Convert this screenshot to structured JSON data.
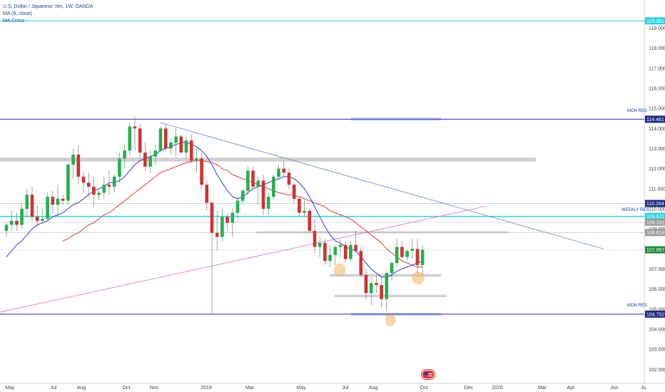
{
  "legend": {
    "title": "U.S. Dollar / Japanese Yen, 1W, OANDA",
    "ma_label": "MA (9, close)",
    "ma_cross_label": "MA Cross"
  },
  "colors": {
    "up": "#26a69a",
    "up_fill": "#22b14c",
    "down": "#d32f2f",
    "ma_fast": "#2b3fd6",
    "ma_slow": "#e53935",
    "trendline": "#7c8fd0",
    "support_pink": "#e57ad6",
    "hline_blue": "#2a2ab0",
    "hline_cyan": "#27d3e0",
    "zone_gray": "#c8c8c8",
    "zone_blue": "#b9cdf2",
    "highlight": "#f6b460",
    "tag_navy": "#1e2a80",
    "tag_green": "#1d8a3a",
    "tag_gray": "#9a9a9a"
  },
  "x_axis": {
    "labels": [
      "May",
      "Jul",
      "Aug",
      "Oct",
      "Nov",
      "2019",
      "Mar",
      "May",
      "Jul",
      "Aug",
      "Oct",
      "Dec",
      "2020",
      "Mar",
      "Apr",
      "Jun",
      "Ju"
    ]
  },
  "price_tags": [
    {
      "value": "119.361",
      "kind": "cyan"
    },
    {
      "value": "114.461",
      "kind": "navy"
    },
    {
      "value": "110.264",
      "kind": "navy"
    },
    {
      "value": "109.621",
      "kind": "cyan"
    },
    {
      "value": "109.331",
      "kind": "gray"
    },
    {
      "value": "108.818",
      "kind": "gray"
    },
    {
      "value": "107.957",
      "kind": "green"
    },
    {
      "value": "104.752",
      "kind": "navy"
    }
  ],
  "annotations": {
    "mon_res_top": "MON RES",
    "weekly_res": "WEEKLY RES",
    "mon_res_bottom": "MON RES"
  },
  "chart_data": {
    "type": "candlestick",
    "title": "U.S. Dollar / Japanese Yen, 1W, OANDA",
    "ylim": [
      101.3,
      120.4
    ],
    "y_ticks": [
      102.0,
      103.0,
      104.0,
      105.0,
      106.0,
      107.0,
      108.0,
      109.0,
      110.0,
      111.0,
      112.0,
      113.0,
      114.0,
      115.0,
      116.0,
      117.0,
      118.0,
      119.0
    ],
    "series": [
      {
        "name": "USDJPY",
        "candles": [
          {
            "o": 108.9,
            "h": 109.3,
            "l": 108.6,
            "c": 109.2
          },
          {
            "o": 109.2,
            "h": 109.9,
            "l": 108.9,
            "c": 109.4
          },
          {
            "o": 109.4,
            "h": 109.8,
            "l": 108.9,
            "c": 109.2
          },
          {
            "o": 109.2,
            "h": 110.3,
            "l": 109.0,
            "c": 110.0
          },
          {
            "o": 110.0,
            "h": 111.0,
            "l": 109.6,
            "c": 110.7
          },
          {
            "o": 110.7,
            "h": 111.1,
            "l": 109.4,
            "c": 109.6
          },
          {
            "o": 109.6,
            "h": 110.2,
            "l": 109.1,
            "c": 109.4
          },
          {
            "o": 109.4,
            "h": 110.0,
            "l": 109.3,
            "c": 109.5
          },
          {
            "o": 109.5,
            "h": 110.8,
            "l": 109.4,
            "c": 110.6
          },
          {
            "o": 110.6,
            "h": 110.9,
            "l": 109.8,
            "c": 110.2
          },
          {
            "o": 110.2,
            "h": 111.2,
            "l": 109.6,
            "c": 110.5
          },
          {
            "o": 110.5,
            "h": 110.7,
            "l": 110.2,
            "c": 110.4
          },
          {
            "o": 110.4,
            "h": 112.3,
            "l": 110.2,
            "c": 112.2
          },
          {
            "o": 112.2,
            "h": 113.0,
            "l": 111.5,
            "c": 112.7
          },
          {
            "o": 112.7,
            "h": 113.2,
            "l": 111.2,
            "c": 111.6
          },
          {
            "o": 111.6,
            "h": 111.8,
            "l": 110.8,
            "c": 111.3
          },
          {
            "o": 111.3,
            "h": 111.8,
            "l": 110.6,
            "c": 111.1
          },
          {
            "o": 111.1,
            "h": 111.6,
            "l": 110.1,
            "c": 110.7
          },
          {
            "o": 110.7,
            "h": 111.0,
            "l": 110.4,
            "c": 110.8
          },
          {
            "o": 110.8,
            "h": 111.6,
            "l": 110.5,
            "c": 111.2
          },
          {
            "o": 111.2,
            "h": 111.9,
            "l": 110.7,
            "c": 111.1
          },
          {
            "o": 111.1,
            "h": 111.7,
            "l": 110.8,
            "c": 111.6
          },
          {
            "o": 111.6,
            "h": 112.8,
            "l": 111.3,
            "c": 112.5
          },
          {
            "o": 112.5,
            "h": 113.2,
            "l": 112.0,
            "c": 112.9
          },
          {
            "o": 112.9,
            "h": 114.3,
            "l": 112.7,
            "c": 114.1
          },
          {
            "o": 114.1,
            "h": 114.6,
            "l": 112.9,
            "c": 114.0
          },
          {
            "o": 114.0,
            "h": 114.2,
            "l": 112.5,
            "c": 112.8
          },
          {
            "o": 112.8,
            "h": 113.3,
            "l": 111.9,
            "c": 112.1
          },
          {
            "o": 112.1,
            "h": 112.9,
            "l": 111.8,
            "c": 112.6
          },
          {
            "o": 112.6,
            "h": 113.2,
            "l": 112.2,
            "c": 112.9
          },
          {
            "o": 112.9,
            "h": 114.1,
            "l": 112.8,
            "c": 114.0
          },
          {
            "o": 114.0,
            "h": 114.2,
            "l": 112.9,
            "c": 113.0
          },
          {
            "o": 113.0,
            "h": 113.5,
            "l": 112.7,
            "c": 113.3
          },
          {
            "o": 113.3,
            "h": 114.0,
            "l": 112.6,
            "c": 113.6
          },
          {
            "o": 113.6,
            "h": 113.7,
            "l": 112.8,
            "c": 112.8
          },
          {
            "o": 112.8,
            "h": 113.6,
            "l": 112.5,
            "c": 113.4
          },
          {
            "o": 113.4,
            "h": 113.7,
            "l": 112.3,
            "c": 112.4
          },
          {
            "o": 112.4,
            "h": 113.0,
            "l": 111.8,
            "c": 112.5
          },
          {
            "o": 112.5,
            "h": 112.8,
            "l": 111.0,
            "c": 111.2
          },
          {
            "o": 111.2,
            "h": 111.4,
            "l": 109.9,
            "c": 110.3
          },
          {
            "o": 110.3,
            "h": 110.4,
            "l": 104.8,
            "c": 108.8
          },
          {
            "o": 108.8,
            "h": 109.9,
            "l": 107.9,
            "c": 108.6
          },
          {
            "o": 108.6,
            "h": 110.0,
            "l": 108.4,
            "c": 109.6
          },
          {
            "o": 109.6,
            "h": 109.8,
            "l": 108.9,
            "c": 109.3
          },
          {
            "o": 109.3,
            "h": 110.0,
            "l": 108.6,
            "c": 109.8
          },
          {
            "o": 109.8,
            "h": 110.6,
            "l": 109.5,
            "c": 110.4
          },
          {
            "o": 110.4,
            "h": 111.0,
            "l": 110.2,
            "c": 110.9
          },
          {
            "o": 110.9,
            "h": 112.1,
            "l": 110.7,
            "c": 111.9
          },
          {
            "o": 111.9,
            "h": 112.1,
            "l": 111.0,
            "c": 111.1
          },
          {
            "o": 111.1,
            "h": 111.6,
            "l": 110.2,
            "c": 111.4
          },
          {
            "o": 111.4,
            "h": 111.7,
            "l": 109.7,
            "c": 110.0
          },
          {
            "o": 110.0,
            "h": 110.8,
            "l": 109.7,
            "c": 110.6
          },
          {
            "o": 110.6,
            "h": 111.7,
            "l": 110.5,
            "c": 111.6
          },
          {
            "o": 111.6,
            "h": 112.2,
            "l": 111.4,
            "c": 112.0
          },
          {
            "o": 112.0,
            "h": 112.4,
            "l": 111.6,
            "c": 111.8
          },
          {
            "o": 111.8,
            "h": 112.0,
            "l": 111.0,
            "c": 111.2
          },
          {
            "o": 111.2,
            "h": 111.3,
            "l": 110.3,
            "c": 110.5
          },
          {
            "o": 110.5,
            "h": 110.6,
            "l": 109.6,
            "c": 109.8
          },
          {
            "o": 109.8,
            "h": 110.4,
            "l": 109.6,
            "c": 109.9
          },
          {
            "o": 109.9,
            "h": 110.0,
            "l": 108.8,
            "c": 108.9
          },
          {
            "o": 108.9,
            "h": 109.5,
            "l": 107.8,
            "c": 108.1
          },
          {
            "o": 108.1,
            "h": 108.6,
            "l": 107.6,
            "c": 108.3
          },
          {
            "o": 108.3,
            "h": 108.5,
            "l": 107.2,
            "c": 107.4
          },
          {
            "o": 107.4,
            "h": 108.2,
            "l": 107.1,
            "c": 107.7
          },
          {
            "o": 107.7,
            "h": 108.2,
            "l": 107.2,
            "c": 108.1
          },
          {
            "o": 108.1,
            "h": 108.5,
            "l": 107.6,
            "c": 108.2
          },
          {
            "o": 108.2,
            "h": 108.4,
            "l": 107.3,
            "c": 107.5
          },
          {
            "o": 107.5,
            "h": 108.4,
            "l": 107.4,
            "c": 108.2
          },
          {
            "o": 108.2,
            "h": 108.9,
            "l": 107.8,
            "c": 107.9
          },
          {
            "o": 107.9,
            "h": 108.1,
            "l": 106.6,
            "c": 106.7
          },
          {
            "o": 106.7,
            "h": 107.0,
            "l": 105.5,
            "c": 105.8
          },
          {
            "o": 105.8,
            "h": 106.6,
            "l": 105.2,
            "c": 106.3
          },
          {
            "o": 106.3,
            "h": 106.7,
            "l": 105.8,
            "c": 106.2
          },
          {
            "o": 106.2,
            "h": 106.6,
            "l": 105.1,
            "c": 105.5
          },
          {
            "o": 105.5,
            "h": 106.9,
            "l": 104.9,
            "c": 106.8
          },
          {
            "o": 106.8,
            "h": 107.4,
            "l": 106.4,
            "c": 107.3
          },
          {
            "o": 107.3,
            "h": 108.5,
            "l": 107.1,
            "c": 108.1
          },
          {
            "o": 108.1,
            "h": 108.4,
            "l": 107.5,
            "c": 107.6
          },
          {
            "o": 107.6,
            "h": 108.0,
            "l": 107.4,
            "c": 107.9
          },
          {
            "o": 107.9,
            "h": 108.5,
            "l": 107.5,
            "c": 108.0
          },
          {
            "o": 108.0,
            "h": 108.5,
            "l": 106.8,
            "c": 107.2
          },
          {
            "o": 107.2,
            "h": 108.2,
            "l": 106.7,
            "c": 107.96
          }
        ]
      },
      {
        "name": "MA (9, close)",
        "values": [
          107.6,
          107.9,
          108.2,
          108.4,
          108.7,
          109.0,
          109.2,
          109.3,
          109.4,
          109.6,
          109.7,
          109.8,
          110.0,
          110.2,
          110.3,
          110.5,
          110.7,
          110.9,
          111.0,
          111.1,
          111.3,
          111.3,
          111.4,
          111.6,
          111.9,
          112.2,
          112.4,
          112.5,
          112.6,
          112.7,
          112.9,
          113.0,
          113.1,
          113.2,
          113.3,
          113.3,
          113.2,
          113.1,
          112.9,
          112.6,
          112.2,
          111.7,
          111.3,
          110.9,
          110.6,
          110.5,
          110.6,
          110.8,
          111.0,
          111.1,
          111.2,
          111.3,
          111.4,
          111.5,
          111.6,
          111.6,
          111.5,
          111.3,
          111.0,
          110.6,
          110.1,
          109.6,
          109.1,
          108.7,
          108.4,
          108.3,
          108.1,
          108.0,
          107.9,
          107.6,
          107.3,
          107.0,
          106.8,
          106.6,
          106.6,
          106.7,
          106.9,
          107.0,
          107.1,
          107.2,
          107.3,
          107.4
        ]
      },
      {
        "name": "MA Cross slow",
        "values": [
          null,
          null,
          null,
          null,
          null,
          null,
          null,
          null,
          null,
          null,
          null,
          108.4,
          108.5,
          108.7,
          108.8,
          109.0,
          109.2,
          109.3,
          109.5,
          109.7,
          109.8,
          110.0,
          110.2,
          110.4,
          110.6,
          110.8,
          111.0,
          111.2,
          111.4,
          111.6,
          111.8,
          111.9,
          112.0,
          112.1,
          112.2,
          112.3,
          112.35,
          112.4,
          112.4,
          112.35,
          112.3,
          112.2,
          112.0,
          111.9,
          111.7,
          111.6,
          111.5,
          111.4,
          111.3,
          111.2,
          111.1,
          111.0,
          110.9,
          110.8,
          110.75,
          110.7,
          110.65,
          110.6,
          110.5,
          110.4,
          110.3,
          110.2,
          110.1,
          109.9,
          109.8,
          109.7,
          109.6,
          109.5,
          109.3,
          109.1,
          108.9,
          108.7,
          108.5,
          108.3,
          108.0,
          107.8,
          107.6,
          107.4,
          107.3,
          107.2,
          107.1,
          107.1
        ]
      }
    ]
  }
}
